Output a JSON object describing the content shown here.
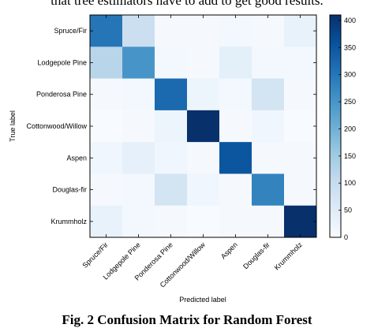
{
  "page": {
    "top_text": "that tree estimators have to add to get good results.",
    "caption": "Fig. 2 Confusion Matrix for Random Forest"
  },
  "chart_data": {
    "type": "heatmap",
    "title": "",
    "xlabel": "Predicted label",
    "ylabel": "True label",
    "x_categories": [
      "Spruce/Fir",
      "Lodgepole Pine",
      "Ponderosa Pine",
      "Cottonwood/Willow",
      "Aspen",
      "Douglas-fir",
      "Krummholz"
    ],
    "y_categories": [
      "Spruce/Fir",
      "Lodgepole Pine",
      "Ponderosa Pine",
      "Cottonwood/Willow",
      "Aspen",
      "Douglas-fir",
      "Krummholz"
    ],
    "values": [
      [
        300,
        90,
        5,
        5,
        10,
        5,
        30
      ],
      [
        120,
        250,
        10,
        5,
        40,
        10,
        10
      ],
      [
        5,
        10,
        320,
        20,
        10,
        75,
        5
      ],
      [
        0,
        5,
        20,
        410,
        5,
        15,
        0
      ],
      [
        15,
        35,
        15,
        5,
        350,
        5,
        5
      ],
      [
        5,
        10,
        75,
        15,
        5,
        280,
        5
      ],
      [
        30,
        10,
        5,
        0,
        5,
        5,
        410
      ]
    ],
    "colorbar": {
      "min": 0,
      "max": 410,
      "ticks": [
        0,
        50,
        100,
        150,
        200,
        250,
        300,
        350,
        400
      ]
    },
    "colormap": {
      "low": "#f7fbff",
      "high": "#08306b"
    },
    "grid": false
  }
}
